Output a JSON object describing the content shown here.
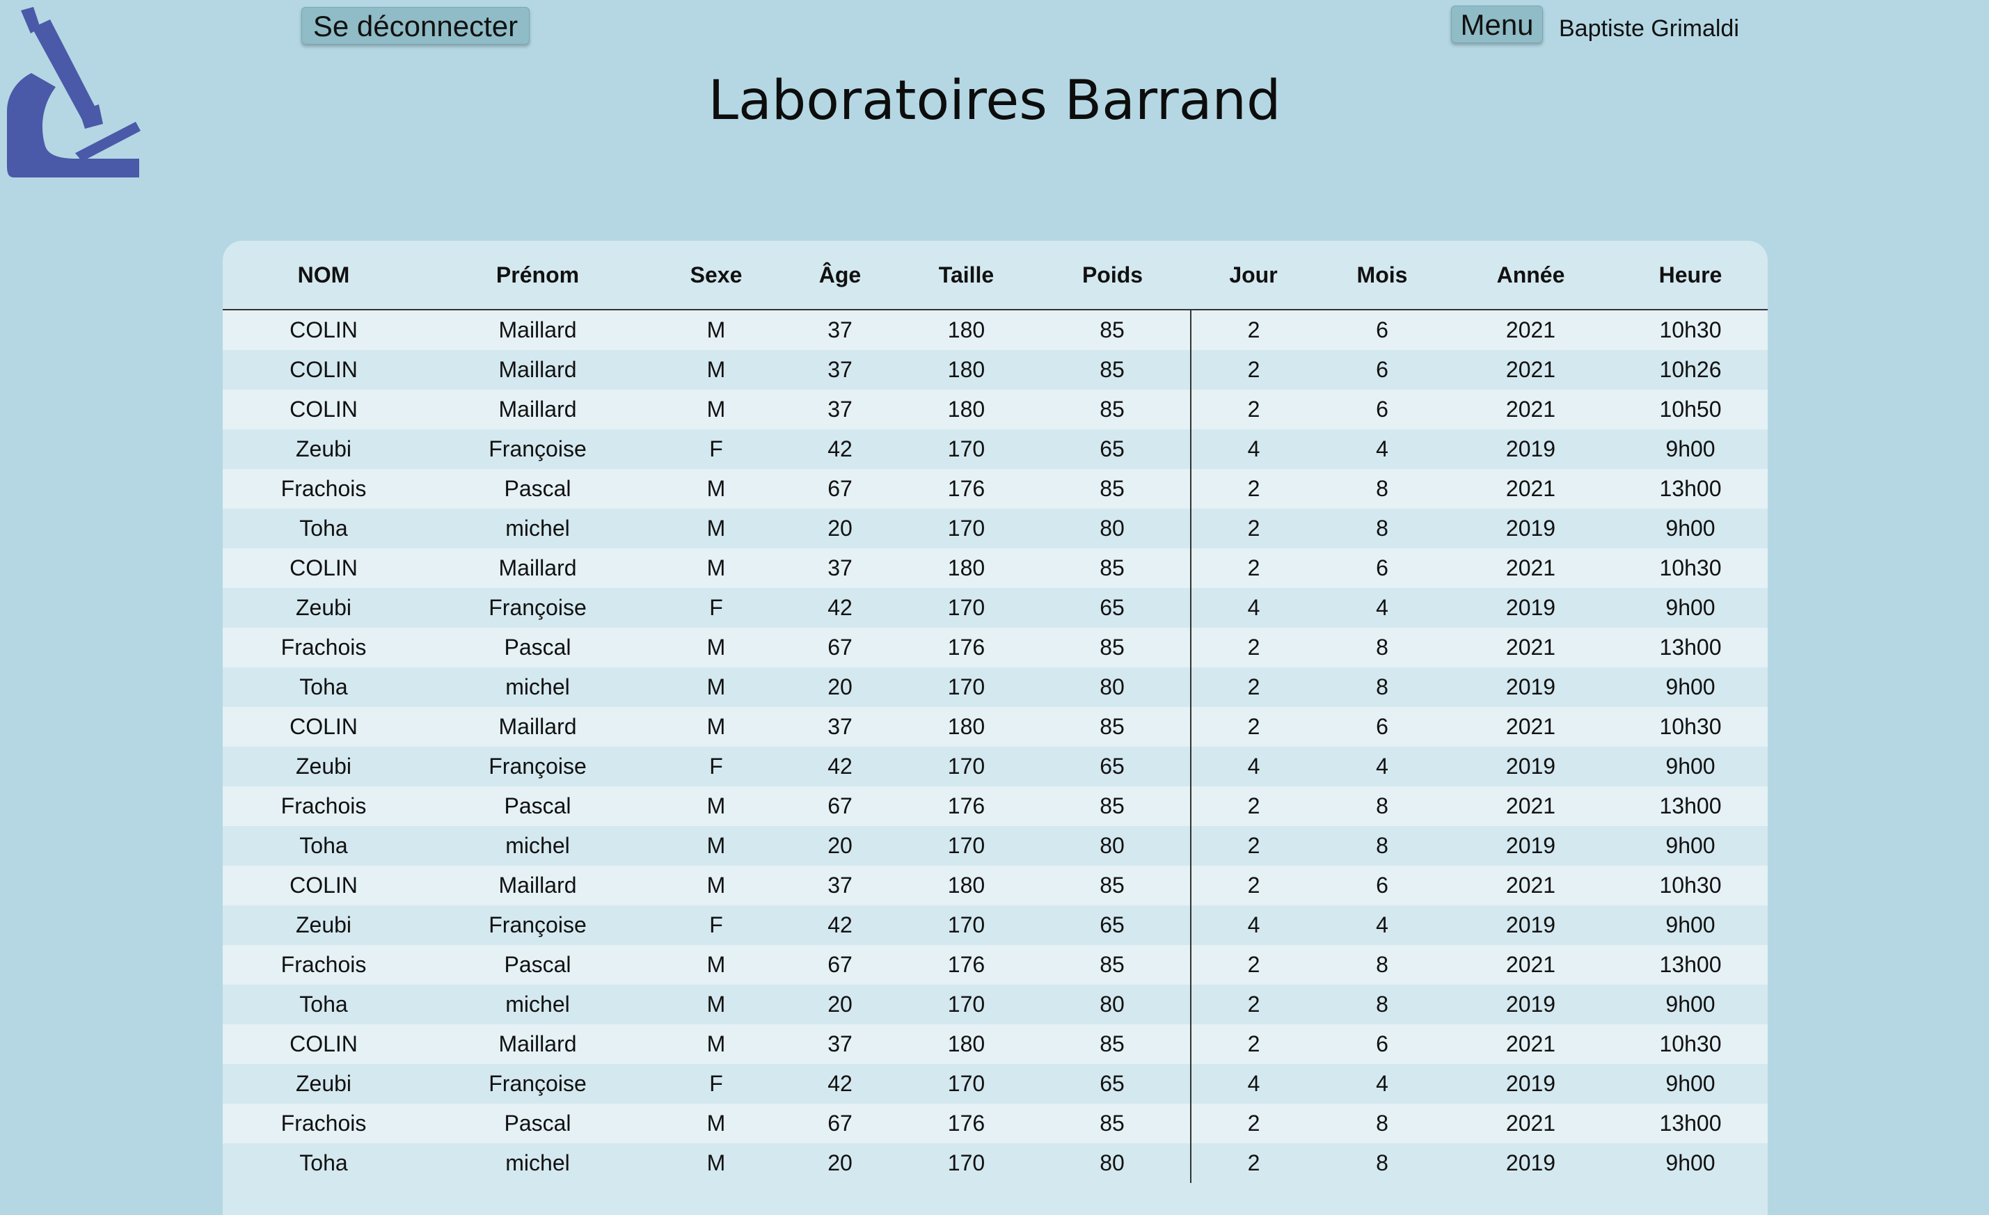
{
  "header": {
    "logout_label": "Se déconnecter",
    "menu_label": "Menu",
    "username": "Baptiste Grimaldi",
    "title": "Laboratoires Barrand",
    "logo_icon": "microscope-icon",
    "logo_color": "#4a59a8"
  },
  "table": {
    "columns": [
      "NOM",
      "Prénom",
      "Sexe",
      "Âge",
      "Taille",
      "Poids",
      "Jour",
      "Mois",
      "Année",
      "Heure"
    ],
    "rows": [
      [
        "COLIN",
        "Maillard",
        "M",
        "37",
        "180",
        "85",
        "2",
        "6",
        "2021",
        "10h30"
      ],
      [
        "COLIN",
        "Maillard",
        "M",
        "37",
        "180",
        "85",
        "2",
        "6",
        "2021",
        "10h26"
      ],
      [
        "COLIN",
        "Maillard",
        "M",
        "37",
        "180",
        "85",
        "2",
        "6",
        "2021",
        "10h50"
      ],
      [
        "Zeubi",
        "Françoise",
        "F",
        "42",
        "170",
        "65",
        "4",
        "4",
        "2019",
        "9h00"
      ],
      [
        "Frachois",
        "Pascal",
        "M",
        "67",
        "176",
        "85",
        "2",
        "8",
        "2021",
        "13h00"
      ],
      [
        "Toha",
        "michel",
        "M",
        "20",
        "170",
        "80",
        "2",
        "8",
        "2019",
        "9h00"
      ],
      [
        "COLIN",
        "Maillard",
        "M",
        "37",
        "180",
        "85",
        "2",
        "6",
        "2021",
        "10h30"
      ],
      [
        "Zeubi",
        "Françoise",
        "F",
        "42",
        "170",
        "65",
        "4",
        "4",
        "2019",
        "9h00"
      ],
      [
        "Frachois",
        "Pascal",
        "M",
        "67",
        "176",
        "85",
        "2",
        "8",
        "2021",
        "13h00"
      ],
      [
        "Toha",
        "michel",
        "M",
        "20",
        "170",
        "80",
        "2",
        "8",
        "2019",
        "9h00"
      ],
      [
        "COLIN",
        "Maillard",
        "M",
        "37",
        "180",
        "85",
        "2",
        "6",
        "2021",
        "10h30"
      ],
      [
        "Zeubi",
        "Françoise",
        "F",
        "42",
        "170",
        "65",
        "4",
        "4",
        "2019",
        "9h00"
      ],
      [
        "Frachois",
        "Pascal",
        "M",
        "67",
        "176",
        "85",
        "2",
        "8",
        "2021",
        "13h00"
      ],
      [
        "Toha",
        "michel",
        "M",
        "20",
        "170",
        "80",
        "2",
        "8",
        "2019",
        "9h00"
      ],
      [
        "COLIN",
        "Maillard",
        "M",
        "37",
        "180",
        "85",
        "2",
        "6",
        "2021",
        "10h30"
      ],
      [
        "Zeubi",
        "Françoise",
        "F",
        "42",
        "170",
        "65",
        "4",
        "4",
        "2019",
        "9h00"
      ],
      [
        "Frachois",
        "Pascal",
        "M",
        "67",
        "176",
        "85",
        "2",
        "8",
        "2021",
        "13h00"
      ],
      [
        "Toha",
        "michel",
        "M",
        "20",
        "170",
        "80",
        "2",
        "8",
        "2019",
        "9h00"
      ],
      [
        "COLIN",
        "Maillard",
        "M",
        "37",
        "180",
        "85",
        "2",
        "6",
        "2021",
        "10h30"
      ],
      [
        "Zeubi",
        "Françoise",
        "F",
        "42",
        "170",
        "65",
        "4",
        "4",
        "2019",
        "9h00"
      ],
      [
        "Frachois",
        "Pascal",
        "M",
        "67",
        "176",
        "85",
        "2",
        "8",
        "2021",
        "13h00"
      ],
      [
        "Toha",
        "michel",
        "M",
        "20",
        "170",
        "80",
        "2",
        "8",
        "2019",
        "9h00"
      ]
    ]
  }
}
